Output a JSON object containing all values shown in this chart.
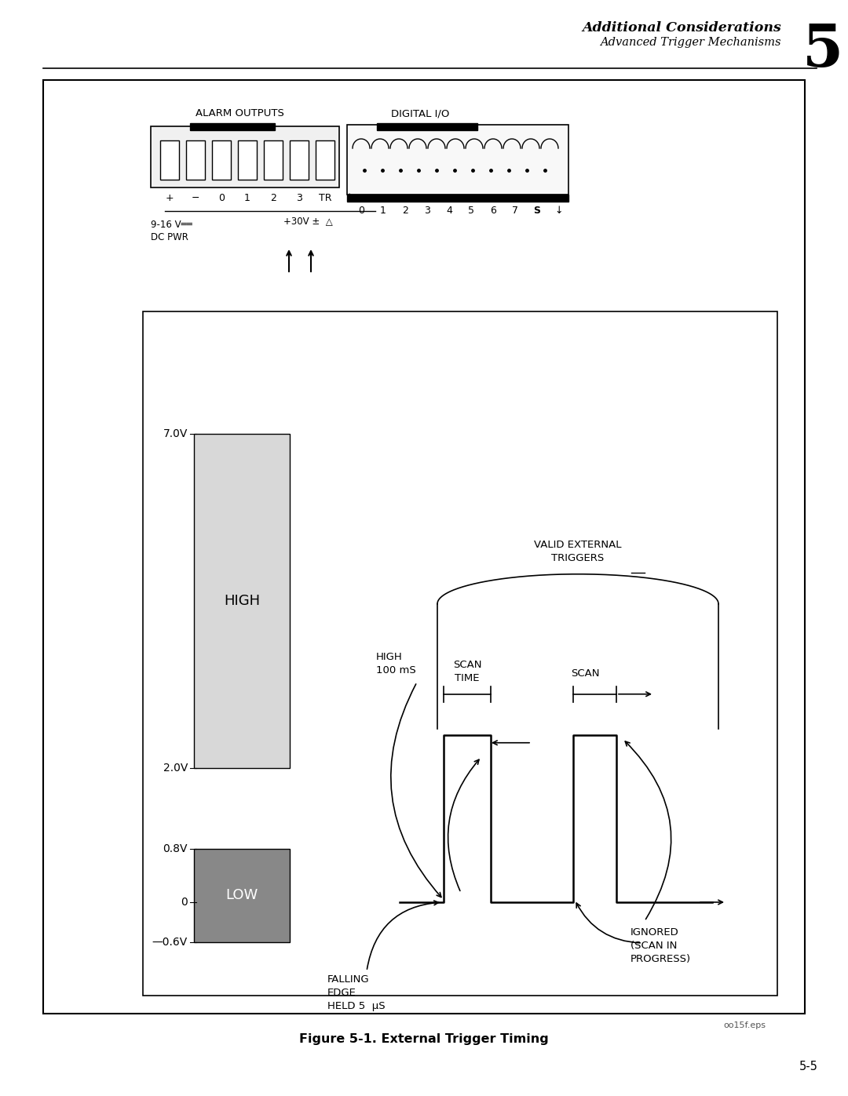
{
  "bg_color": "#ffffff",
  "page_title": "Additional Considerations",
  "page_subtitle": "Advanced Trigger Mechanisms",
  "chapter_num": "5",
  "page_num": "5-5",
  "figure_caption": "Figure 5-1. External Trigger Timing",
  "file_ref": "oo15f.eps",
  "alarm_outputs_label": "ALARM OUTPUTS",
  "digital_io_label": "DIGITAL I/O",
  "high_rect_color": "#d8d8d8",
  "low_rect_color": "#888888",
  "y_ticks": [
    {
      "label": "7.0V",
      "val": 7.0
    },
    {
      "label": "2.0V",
      "val": 2.0
    },
    {
      "label": "0.8V",
      "val": 0.8
    },
    {
      "label": "0",
      "val": 0.0
    },
    {
      "label": "—0.6V",
      "val": -0.6
    }
  ],
  "valid_ext_label": "VALID EXTERNAL\nTRIGGERS",
  "scan_time_label": "SCAN\nTIME",
  "scan_label": "SCAN",
  "high_100ms_label": "HIGH\n100 mS",
  "falling_edge_label": "FALLING\nEDGE\nHELD 5  μS",
  "ignored_label": "IGNORED\n(SCAN IN\nPROGRESS)"
}
